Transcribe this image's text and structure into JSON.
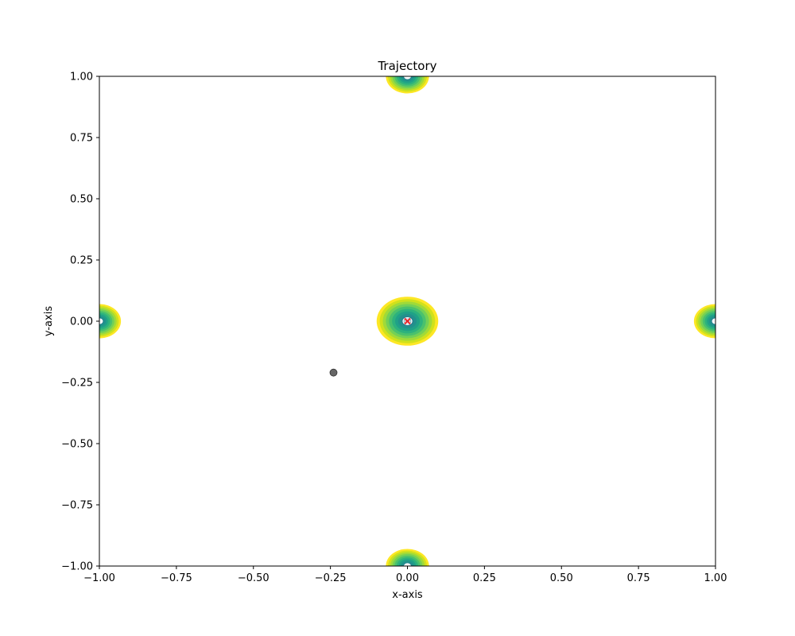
{
  "chart_data": {
    "type": "scatter",
    "title": "Trajectory",
    "xlabel": "x-axis",
    "ylabel": "y-axis",
    "xlim": [
      -1.0,
      1.0
    ],
    "ylim": [
      -1.0,
      1.0
    ],
    "x_ticks": [
      -1.0,
      -0.75,
      -0.5,
      -0.25,
      0.0,
      0.25,
      0.5,
      0.75,
      1.0
    ],
    "x_tick_labels": [
      "−1.00",
      "−0.75",
      "−0.50",
      "−0.25",
      "0.00",
      "0.25",
      "0.50",
      "0.75",
      "1.00"
    ],
    "y_ticks": [
      1.0,
      0.75,
      0.5,
      0.25,
      0.0,
      -0.25,
      -0.5,
      -0.75,
      -1.0
    ],
    "y_tick_labels": [
      "1.00",
      "0.75",
      "0.50",
      "0.25",
      "0.00",
      "−0.25",
      "−0.50",
      "−0.75",
      "−1.00"
    ],
    "grid": false,
    "contour_wells": [
      {
        "x": 0.0,
        "y": 0.0,
        "radius": 0.1
      },
      {
        "x": 0.0,
        "y": 1.0,
        "radius": 0.07
      },
      {
        "x": 0.0,
        "y": -1.0,
        "radius": 0.07
      },
      {
        "x": -1.0,
        "y": 0.0,
        "radius": 0.07
      },
      {
        "x": 1.0,
        "y": 0.0,
        "radius": 0.07
      }
    ],
    "contour_colors": [
      "#fde725",
      "#d0e11c",
      "#a0da39",
      "#73d056",
      "#4ac16d",
      "#2db27d",
      "#1fa187",
      "#21918c",
      "#277f8e",
      "#2e6e8e"
    ],
    "points": [
      {
        "x": -0.24,
        "y": -0.21,
        "marker": "circle",
        "color": "#555555"
      }
    ],
    "target": {
      "x": 0.0,
      "y": 0.0,
      "marker": "x",
      "color": "#e8262b"
    }
  }
}
